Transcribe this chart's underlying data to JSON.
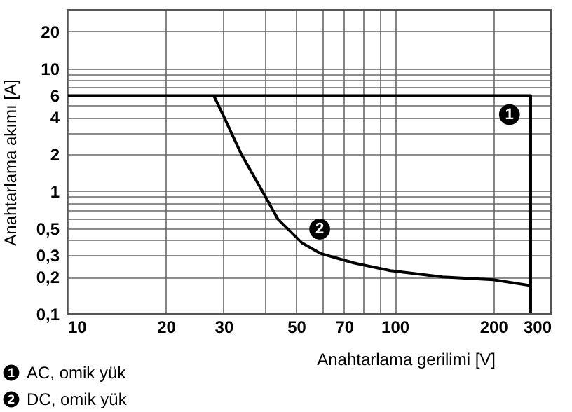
{
  "chart_data": {
    "type": "line",
    "xlabel": "Anahtarlama gerilimi [V]",
    "ylabel": "Anahtarlama akımı [A]",
    "series": [
      {
        "name": "AC, omik yük",
        "color": "#000000",
        "x": [
          10,
          260,
          260
        ],
        "values": [
          6,
          6,
          0.1
        ]
      },
      {
        "name": "DC, omik yük",
        "color": "#000000",
        "x": [
          28,
          30,
          34,
          39.4,
          44,
          52,
          59.5,
          75,
          97,
          140,
          200,
          260
        ],
        "values": [
          6,
          4.1,
          2,
          1,
          0.59,
          0.38,
          0.31,
          0.26,
          0.225,
          0.2,
          0.19,
          0.17
        ]
      }
    ],
    "annotations": [
      {
        "text": "1",
        "x": 224,
        "y": 4.2
      },
      {
        "text": "2",
        "x": 59,
        "y": 0.49
      }
    ],
    "log": "xy",
    "xlim": [
      10,
      300
    ],
    "ylim": [
      0.1,
      30
    ],
    "xticks": [
      10,
      20,
      30,
      {
        "value": 40,
        "label": null
      },
      50,
      {
        "value": 60,
        "label": null
      },
      70,
      {
        "value": 80,
        "label": null
      },
      {
        "value": 90,
        "label": null
      },
      100,
      200,
      300
    ],
    "yticks": [
      {
        "value": 0.1,
        "label": "0,1"
      },
      {
        "value": 0.2,
        "label": "0,2"
      },
      {
        "value": 0.3,
        "label": "0,3"
      },
      {
        "value": 0.4,
        "label": null
      },
      {
        "value": 0.5,
        "label": "0,5"
      },
      {
        "value": 0.6,
        "label": null
      },
      {
        "value": 0.7,
        "label": null
      },
      {
        "value": 0.8,
        "label": null
      },
      {
        "value": 0.9,
        "label": null
      },
      1,
      2,
      {
        "value": 3,
        "label": null
      },
      4,
      {
        "value": 5,
        "label": null
      },
      6,
      {
        "value": 7,
        "label": null
      },
      {
        "value": 8,
        "label": null
      },
      {
        "value": 9,
        "label": null
      },
      10,
      20
    ],
    "grid": true,
    "legend": "bottom left",
    "marker": "none",
    "line_style": "solid"
  }
}
